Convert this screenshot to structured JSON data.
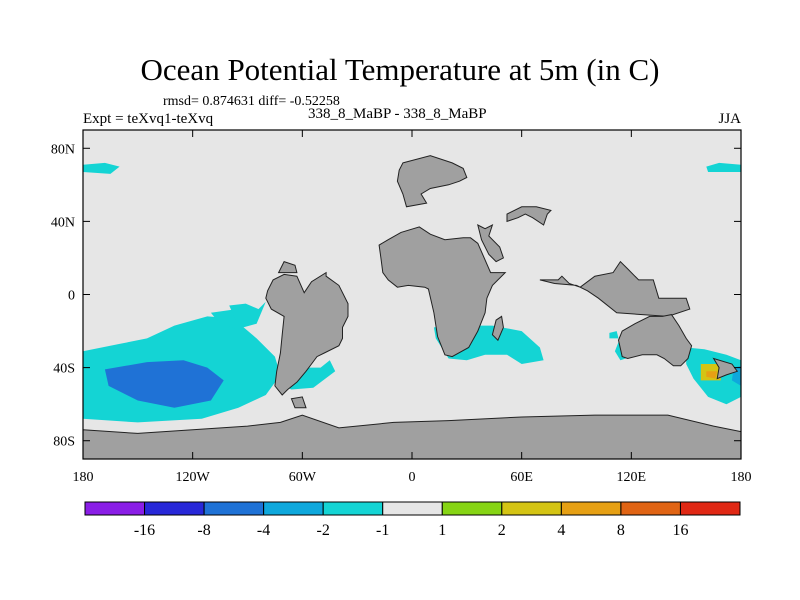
{
  "chart_data": {
    "type": "heatmap",
    "title": "Ocean Potential Temperature at 5m (in C)",
    "stats_text": "rmsd= 0.874631 diff= -0.52258",
    "left_label": "Expt = teXvq1-teXvq",
    "center_label": "338_8_MaBP - 338_8_MaBP",
    "right_label": "JJA",
    "x_range": [
      -180,
      180
    ],
    "y_range": [
      -90,
      90
    ],
    "x_ticks": [
      {
        "value": -180,
        "label": "180"
      },
      {
        "value": -120,
        "label": "120W"
      },
      {
        "value": -60,
        "label": "60W"
      },
      {
        "value": 0,
        "label": "0"
      },
      {
        "value": 60,
        "label": "60E"
      },
      {
        "value": 120,
        "label": "120E"
      },
      {
        "value": 180,
        "label": "180"
      }
    ],
    "y_ticks": [
      {
        "value": 80,
        "label": "80N"
      },
      {
        "value": 40,
        "label": "40N"
      },
      {
        "value": 0,
        "label": "0"
      },
      {
        "value": -40,
        "label": "40S"
      },
      {
        "value": -80,
        "label": "80S"
      }
    ],
    "colorbar": {
      "colors": [
        "#8a1ee6",
        "#2828d8",
        "#1f72d6",
        "#0fa8dc",
        "#14d4d4",
        "#e6e6e6",
        "#86d414",
        "#d4c414",
        "#e6a014",
        "#e06414",
        "#e02814"
      ],
      "labels": [
        "-16",
        "-8",
        "-4",
        "-2",
        "-1",
        "1",
        "2",
        "4",
        "8",
        "16"
      ]
    },
    "colors": {
      "land": "#a0a0a0",
      "neutral_ocean": "#e6e6e6"
    },
    "land_polygons": [
      [
        [
          -59,
          1
        ],
        [
          -55,
          7
        ],
        [
          -47,
          12
        ],
        [
          -47,
          10
        ],
        [
          -40,
          5
        ],
        [
          -35,
          -5
        ],
        [
          -35,
          -12
        ],
        [
          -38,
          -18
        ],
        [
          -38,
          -24
        ],
        [
          -40,
          -28
        ],
        [
          -48,
          -32
        ],
        [
          -52,
          -34
        ],
        [
          -55,
          -38
        ],
        [
          -58,
          -42
        ],
        [
          -63,
          -48
        ],
        [
          -68,
          -52
        ],
        [
          -71,
          -55
        ],
        [
          -75,
          -50
        ],
        [
          -74,
          -42
        ],
        [
          -72,
          -32
        ],
        [
          -71,
          -22
        ],
        [
          -70,
          -12
        ],
        [
          -77,
          -8
        ],
        [
          -80,
          -2
        ],
        [
          -79,
          2
        ],
        [
          -76,
          8
        ],
        [
          -70,
          11
        ],
        [
          -63,
          10
        ]
      ],
      [
        [
          -18,
          27
        ],
        [
          -13,
          30
        ],
        [
          -6,
          34
        ],
        [
          4,
          37
        ],
        [
          10,
          33
        ],
        [
          18,
          30
        ],
        [
          28,
          31
        ],
        [
          32,
          31
        ],
        [
          36,
          28
        ],
        [
          43,
          12
        ],
        [
          51,
          12
        ],
        [
          44,
          5
        ],
        [
          41,
          -2
        ],
        [
          40,
          -10
        ],
        [
          36,
          -20
        ],
        [
          31,
          -29
        ],
        [
          22,
          -34
        ],
        [
          18,
          -33
        ],
        [
          14,
          -23
        ],
        [
          12,
          -10
        ],
        [
          9,
          3
        ],
        [
          7,
          4
        ],
        [
          -2,
          5
        ],
        [
          -8,
          4
        ],
        [
          -13,
          8
        ],
        [
          -16,
          12
        ],
        [
          -17,
          20
        ]
      ],
      [
        [
          -5,
          72
        ],
        [
          10,
          76
        ],
        [
          22,
          72
        ],
        [
          28,
          69
        ],
        [
          30,
          64
        ],
        [
          26,
          62
        ],
        [
          20,
          60
        ],
        [
          10,
          58
        ],
        [
          5,
          55
        ],
        [
          8,
          50
        ],
        [
          -3,
          48
        ],
        [
          -5,
          55
        ],
        [
          -8,
          62
        ],
        [
          -7,
          68
        ]
      ],
      [
        [
          -72,
          -70
        ],
        [
          -60,
          -66
        ],
        [
          -40,
          -73
        ],
        [
          -10,
          -70
        ],
        [
          20,
          -69
        ],
        [
          60,
          -67
        ],
        [
          100,
          -66
        ],
        [
          140,
          -66
        ],
        [
          165,
          -72
        ],
        [
          180,
          -75
        ],
        [
          180,
          -90
        ],
        [
          -180,
          -90
        ],
        [
          -180,
          -74
        ],
        [
          -150,
          -76
        ],
        [
          -120,
          -74
        ],
        [
          -90,
          -72
        ]
      ],
      [
        [
          70,
          8
        ],
        [
          80,
          8
        ],
        [
          82,
          10
        ],
        [
          86,
          6
        ],
        [
          92,
          4
        ],
        [
          100,
          10
        ],
        [
          110,
          12
        ],
        [
          114,
          18
        ],
        [
          118,
          14
        ],
        [
          124,
          8
        ],
        [
          132,
          8
        ],
        [
          135,
          -2
        ],
        [
          150,
          -2
        ],
        [
          152,
          -8
        ],
        [
          140,
          -12
        ],
        [
          112,
          -10
        ],
        [
          102,
          -2
        ],
        [
          96,
          2
        ],
        [
          90,
          5
        ],
        [
          78,
          6
        ]
      ],
      [
        [
          115,
          -20
        ],
        [
          122,
          -16
        ],
        [
          130,
          -12
        ],
        [
          137,
          -12
        ],
        [
          142,
          -11
        ],
        [
          146,
          -17
        ],
        [
          150,
          -24
        ],
        [
          153,
          -28
        ],
        [
          151,
          -35
        ],
        [
          147,
          -39
        ],
        [
          143,
          -39
        ],
        [
          138,
          -35
        ],
        [
          134,
          -33
        ],
        [
          126,
          -33
        ],
        [
          118,
          -35
        ],
        [
          115,
          -34
        ],
        [
          113,
          -25
        ]
      ],
      [
        [
          165,
          -35
        ],
        [
          175,
          -38
        ],
        [
          178,
          -42
        ],
        [
          172,
          -44
        ],
        [
          167,
          -46
        ],
        [
          168,
          -40
        ]
      ],
      [
        [
          52,
          40
        ],
        [
          58,
          42
        ],
        [
          62,
          44
        ],
        [
          66,
          42
        ],
        [
          72,
          38
        ],
        [
          74,
          44
        ],
        [
          76,
          46
        ],
        [
          68,
          48
        ],
        [
          60,
          48
        ],
        [
          52,
          44
        ]
      ],
      [
        [
          36,
          38
        ],
        [
          40,
          36
        ],
        [
          44,
          38
        ],
        [
          42,
          32
        ],
        [
          48,
          26
        ],
        [
          50,
          20
        ],
        [
          46,
          18
        ],
        [
          42,
          22
        ],
        [
          38,
          30
        ]
      ],
      [
        [
          46,
          -14
        ],
        [
          49,
          -12
        ],
        [
          50,
          -18
        ],
        [
          47,
          -25
        ],
        [
          44,
          -22
        ]
      ],
      [
        [
          -73,
          12
        ],
        [
          -70,
          18
        ],
        [
          -64,
          16
        ],
        [
          -63,
          12
        ]
      ],
      [
        [
          -66,
          -57
        ],
        [
          -60,
          -56
        ],
        [
          -58,
          -62
        ],
        [
          -64,
          -62
        ]
      ]
    ],
    "ocean_anomalies": [
      {
        "bin": "-2",
        "points": [
          [
            -180,
            -31
          ],
          [
            -160,
            -27
          ],
          [
            -145,
            -24
          ],
          [
            -130,
            -17
          ],
          [
            -112,
            -12
          ],
          [
            -98,
            -13
          ],
          [
            -85,
            -24
          ],
          [
            -75,
            -34
          ],
          [
            -72,
            -44
          ],
          [
            -80,
            -55
          ],
          [
            -95,
            -62
          ],
          [
            -115,
            -68
          ],
          [
            -150,
            -70
          ],
          [
            -180,
            -68
          ]
        ]
      },
      {
        "bin": "-4",
        "points": [
          [
            -168,
            -41
          ],
          [
            -145,
            -37
          ],
          [
            -125,
            -36
          ],
          [
            -112,
            -40
          ],
          [
            -103,
            -47
          ],
          [
            -110,
            -58
          ],
          [
            -130,
            -62
          ],
          [
            -150,
            -58
          ],
          [
            -166,
            -50
          ]
        ]
      },
      {
        "bin": "-2",
        "points": [
          [
            -110,
            -10
          ],
          [
            -96,
            -8
          ],
          [
            -85,
            -9
          ],
          [
            -80,
            -4
          ],
          [
            -85,
            -16
          ],
          [
            -96,
            -19
          ],
          [
            -106,
            -15
          ]
        ]
      },
      {
        "bin": "-1",
        "points": [
          [
            -100,
            -6
          ],
          [
            -91,
            -5
          ],
          [
            -84,
            -8
          ],
          [
            -86,
            -14
          ],
          [
            -96,
            -15
          ]
        ]
      },
      {
        "bin": "-2",
        "points": [
          [
            -72,
            -38
          ],
          [
            -60,
            -40
          ],
          [
            -50,
            -40
          ],
          [
            -45,
            -36
          ],
          [
            -42,
            -42
          ],
          [
            -54,
            -51
          ],
          [
            -66,
            -52
          ],
          [
            -75,
            -48
          ]
        ]
      },
      {
        "bin": "-2",
        "points": [
          [
            -180,
            67
          ],
          [
            -165,
            66
          ],
          [
            -160,
            70
          ],
          [
            -168,
            72
          ],
          [
            -180,
            71
          ]
        ]
      },
      {
        "bin": "-2",
        "points": [
          [
            162,
            67
          ],
          [
            180,
            67
          ],
          [
            180,
            71
          ],
          [
            168,
            72
          ],
          [
            161,
            70
          ]
        ]
      },
      {
        "bin": "-2",
        "points": [
          [
            12,
            -18
          ],
          [
            22,
            -17
          ],
          [
            34,
            -17
          ],
          [
            44,
            -17
          ],
          [
            60,
            -20
          ],
          [
            70,
            -29
          ],
          [
            72,
            -36
          ],
          [
            60,
            -38
          ],
          [
            52,
            -33
          ],
          [
            40,
            -33
          ],
          [
            30,
            -36
          ],
          [
            20,
            -35
          ],
          [
            13,
            -24
          ]
        ]
      },
      {
        "bin": "-2",
        "points": [
          [
            150,
            -29
          ],
          [
            160,
            -30
          ],
          [
            172,
            -33
          ],
          [
            180,
            -36
          ],
          [
            180,
            -56
          ],
          [
            172,
            -60
          ],
          [
            162,
            -56
          ],
          [
            154,
            -46
          ],
          [
            150,
            -38
          ]
        ]
      },
      {
        "bin": "-2",
        "points": [
          [
            113,
            -26
          ],
          [
            118,
            -29
          ],
          [
            120,
            -34
          ],
          [
            114,
            -36
          ],
          [
            111,
            -31
          ]
        ]
      },
      {
        "bin": "-2",
        "points": [
          [
            108,
            -21
          ],
          [
            112,
            -20
          ],
          [
            113,
            -24
          ],
          [
            108,
            -24
          ]
        ]
      },
      {
        "bin": "-4",
        "points": [
          [
            176,
            -40
          ],
          [
            180,
            -39
          ],
          [
            180,
            -50
          ],
          [
            175,
            -47
          ]
        ]
      },
      {
        "bin": "2",
        "points": [
          [
            158,
            -38
          ],
          [
            168,
            -38
          ],
          [
            169,
            -47
          ],
          [
            158,
            -47
          ]
        ]
      },
      {
        "bin": "8",
        "points": [
          [
            161,
            -42
          ],
          [
            167,
            -42
          ],
          [
            166,
            -46
          ],
          [
            161,
            -45
          ]
        ]
      },
      {
        "bin": "2",
        "points": [
          [
            140,
            -25
          ],
          [
            141,
            -25
          ],
          [
            141,
            -26
          ],
          [
            140,
            -26
          ]
        ]
      }
    ]
  }
}
